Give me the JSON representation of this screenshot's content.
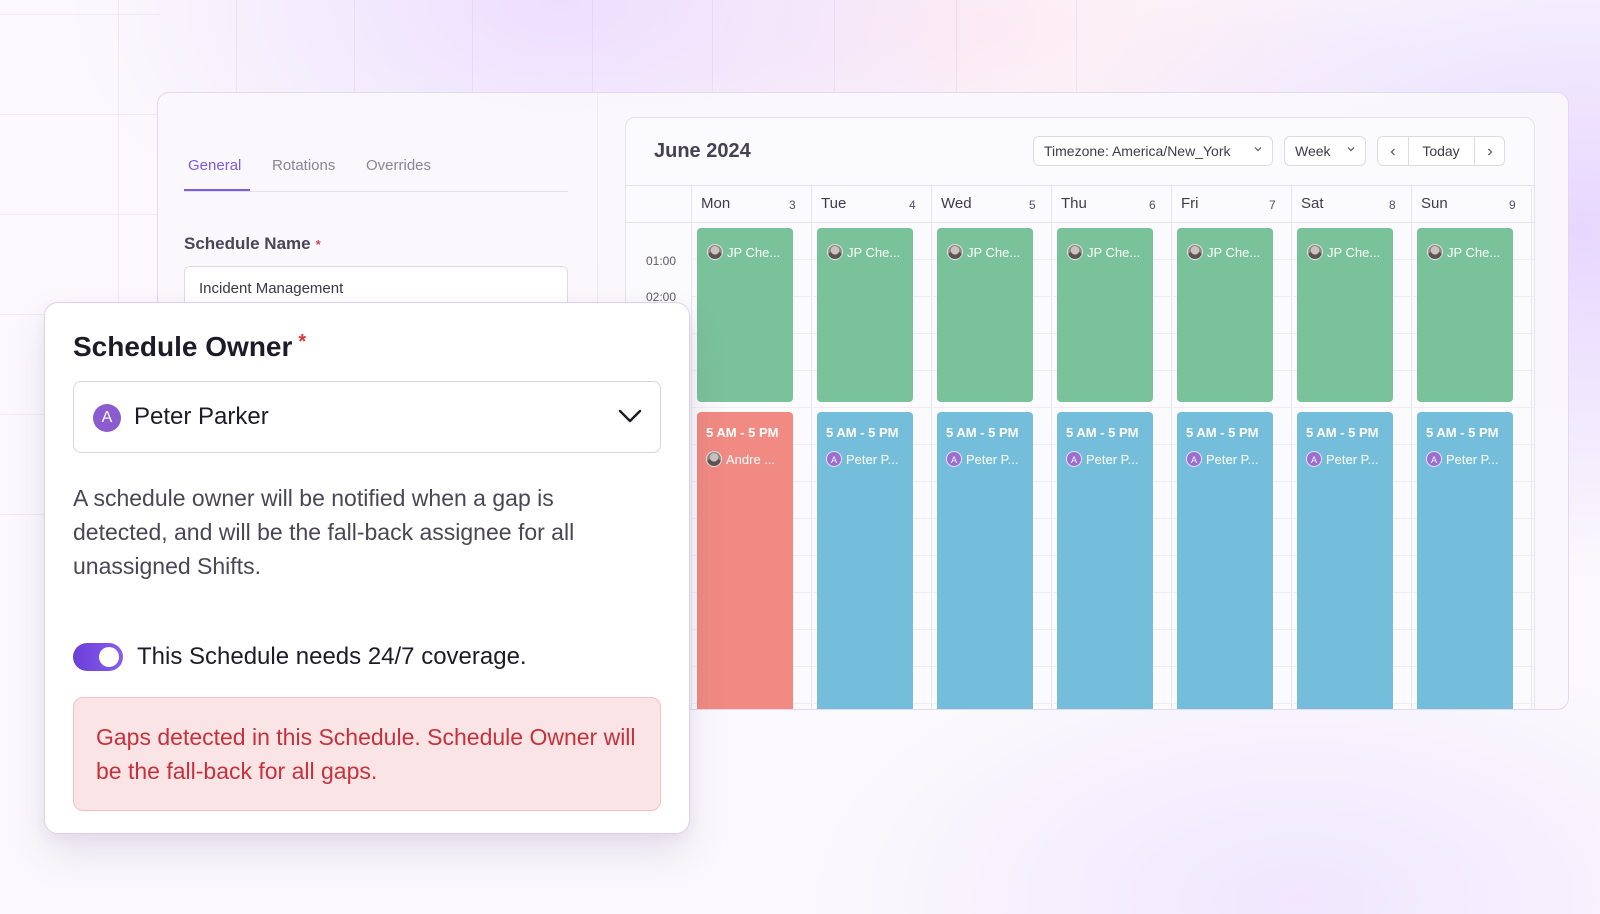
{
  "tabs": [
    {
      "label": "General",
      "active": true
    },
    {
      "label": "Rotations",
      "active": false
    },
    {
      "label": "Overrides",
      "active": false
    }
  ],
  "schedule_name": {
    "label": "Schedule Name",
    "required_mark": "*",
    "value": "Incident Management"
  },
  "calendar": {
    "title": "June 2024",
    "timezone_label": "Timezone: America/New_York",
    "view_label": "Week",
    "today_label": "Today",
    "days": [
      {
        "name": "Mon",
        "num": "3"
      },
      {
        "name": "Tue",
        "num": "4"
      },
      {
        "name": "Wed",
        "num": "5"
      },
      {
        "name": "Thu",
        "num": "6"
      },
      {
        "name": "Fri",
        "num": "7"
      },
      {
        "name": "Sat",
        "num": "8"
      },
      {
        "name": "Sun",
        "num": "9"
      }
    ],
    "time_labels": [
      "01:00",
      "02:00"
    ],
    "night_shift_person": "JP Che...",
    "day_shift": {
      "time": "5 AM - 5 PM",
      "mon_person": "Andre ...",
      "person": "Peter P...",
      "avatar_letter": "A"
    },
    "colors": {
      "night": "#7ac29a",
      "day": "#75bedb",
      "gap_day": "#f18a82"
    }
  },
  "owner": {
    "title": "Schedule Owner",
    "required_mark": "*",
    "selected": "Peter Parker",
    "avatar_letter": "A",
    "description": "A schedule owner will be notified when a gap is detected, and will be the fall-back assignee for all unassigned Shifts.",
    "coverage_toggle_on": true,
    "coverage_label": "This Schedule needs 24/7 coverage.",
    "gap_alert": "Gaps detected in this Schedule. Schedule Owner will be the fall-back for all gaps."
  }
}
